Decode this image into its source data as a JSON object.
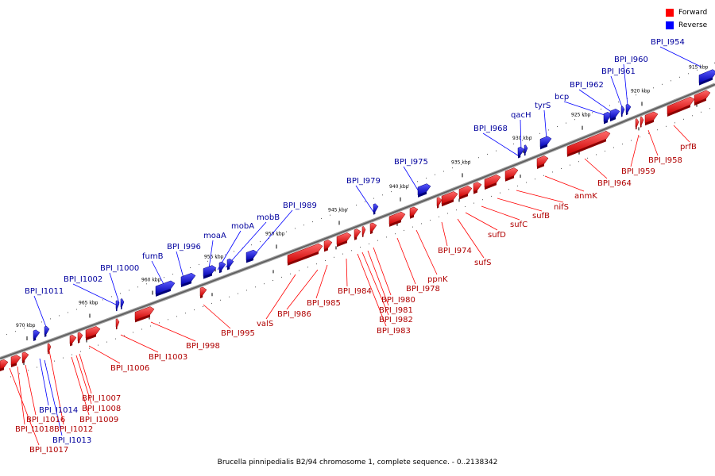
{
  "caption": "Brucella pinnipedialis B2/94 chromosome 1, complete sequence. - 0..2138342",
  "legend": [
    {
      "label": "Forward",
      "color": "#ff0000"
    },
    {
      "label": "Reverse",
      "color": "#0000ff"
    }
  ],
  "colors": {
    "forward": "#ff0000",
    "reverse": "#0000ff",
    "axis": "#808080"
  },
  "ticks": [
    "970 kbp",
    "965 kbp",
    "960 kbp",
    "955 kbp",
    "950 kbp",
    "945 kbp",
    "940 kbp",
    "935 kbp",
    "930 kbp",
    "925 kbp",
    "920 kbp",
    "915 kbp"
  ],
  "features": [
    {
      "label": "BPI_I954",
      "strand": "reverse"
    },
    {
      "label": "BPI_I960",
      "strand": "reverse"
    },
    {
      "label": "BPI_I961",
      "strand": "reverse"
    },
    {
      "label": "BPI_I962",
      "strand": "reverse"
    },
    {
      "label": "bcp",
      "strand": "reverse"
    },
    {
      "label": "tyrS",
      "strand": "reverse"
    },
    {
      "label": "qacH",
      "strand": "reverse"
    },
    {
      "label": "BPI_I968",
      "strand": "reverse"
    },
    {
      "label": "BPI_I975",
      "strand": "reverse"
    },
    {
      "label": "BPI_I979",
      "strand": "reverse"
    },
    {
      "label": "BPI_I989",
      "strand": "reverse"
    },
    {
      "label": "mobB",
      "strand": "reverse"
    },
    {
      "label": "mobA",
      "strand": "reverse"
    },
    {
      "label": "moaA",
      "strand": "reverse"
    },
    {
      "label": "BPI_I996",
      "strand": "reverse"
    },
    {
      "label": "fumB",
      "strand": "reverse"
    },
    {
      "label": "BPI_I1000",
      "strand": "reverse"
    },
    {
      "label": "BPI_I1002",
      "strand": "reverse"
    },
    {
      "label": "BPI_I1011",
      "strand": "reverse"
    },
    {
      "label": "BPI_I1014",
      "strand": "reverse"
    },
    {
      "label": "BPI_I1013",
      "strand": "reverse"
    },
    {
      "label": "prfB",
      "strand": "forward"
    },
    {
      "label": "BPI_I958",
      "strand": "forward"
    },
    {
      "label": "BPI_I959",
      "strand": "forward"
    },
    {
      "label": "BPI_I964",
      "strand": "forward"
    },
    {
      "label": "anmK",
      "strand": "forward"
    },
    {
      "label": "nifS",
      "strand": "forward"
    },
    {
      "label": "sufB",
      "strand": "forward"
    },
    {
      "label": "sufC",
      "strand": "forward"
    },
    {
      "label": "sufD",
      "strand": "forward"
    },
    {
      "label": "sufS",
      "strand": "forward"
    },
    {
      "label": "BPI_I974",
      "strand": "forward"
    },
    {
      "label": "ppnK",
      "strand": "forward"
    },
    {
      "label": "BPI_I978",
      "strand": "forward"
    },
    {
      "label": "BPI_I980",
      "strand": "forward"
    },
    {
      "label": "BPI_I981",
      "strand": "forward"
    },
    {
      "label": "BPI_I982",
      "strand": "forward"
    },
    {
      "label": "BPI_I983",
      "strand": "forward"
    },
    {
      "label": "BPI_I984",
      "strand": "forward"
    },
    {
      "label": "BPI_I985",
      "strand": "forward"
    },
    {
      "label": "BPI_I986",
      "strand": "forward"
    },
    {
      "label": "valS",
      "strand": "forward"
    },
    {
      "label": "BPI_I995",
      "strand": "forward"
    },
    {
      "label": "BPI_I998",
      "strand": "forward"
    },
    {
      "label": "BPI_I1003",
      "strand": "forward"
    },
    {
      "label": "BPI_I1006",
      "strand": "forward"
    },
    {
      "label": "BPI_I1007",
      "strand": "forward"
    },
    {
      "label": "BPI_I1008",
      "strand": "forward"
    },
    {
      "label": "BPI_I1009",
      "strand": "forward"
    },
    {
      "label": "BPI_I1012",
      "strand": "forward"
    },
    {
      "label": "BPI_I1016",
      "strand": "forward"
    },
    {
      "label": "BPI_I1018",
      "strand": "forward"
    },
    {
      "label": "BPI_I1017",
      "strand": "forward"
    }
  ]
}
